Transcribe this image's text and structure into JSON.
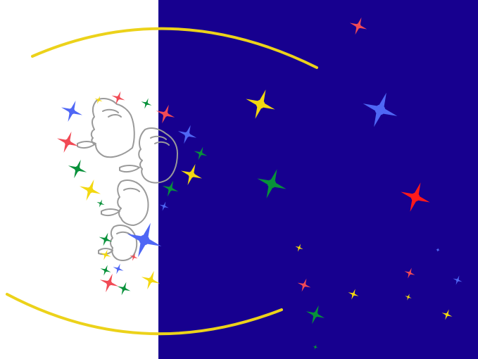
{
  "artwork": {
    "panels": [
      {
        "name": "left-panel",
        "color": "#ffffff"
      },
      {
        "name": "right-panel",
        "color": "#17008f"
      }
    ],
    "arc_color": "#ecd21a",
    "face_stroke": "#9a9a9a",
    "star_colors": {
      "blue": "#4f67f5",
      "red": "#f14a55",
      "green": "#08913a",
      "yellow": "#f3d80f",
      "bright_red": "#ff1a1a"
    }
  }
}
